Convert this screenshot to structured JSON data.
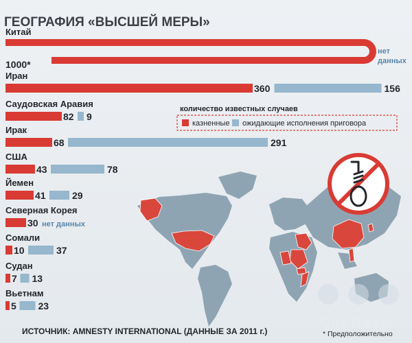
{
  "title": "ГЕОГРАФИЯ «ВЫСШЕЙ МЕРЫ»",
  "legend": {
    "heading": "количество известных случаев",
    "executed": "казненные",
    "awaiting": "ожидающие исполнения приговора"
  },
  "source": "ИСТОЧНИК: AMNESTY INTERNATIONAL (ДАННЫЕ ЗА 2011 г.)",
  "footnote": "* Предположительно",
  "no_data": "нет данных",
  "watermark": "CityTravel",
  "colors": {
    "executed": "#d93b34",
    "awaiting": "#96b7cd",
    "title": "#3c4047",
    "value": "#23262b",
    "nodata": "#5a86aa",
    "map_land": "#8fa4b3",
    "map_hi": "#d9473c",
    "bg": "#e6ebef"
  },
  "icons": {
    "noose": "noose-icon",
    "plane": "plane-icon",
    "building": "building-icon",
    "briefcase": "briefcase-icon"
  },
  "chart_data": {
    "type": "bar",
    "title": "ГЕОГРАФИЯ «ВЫСШЕЙ МЕРЫ»",
    "series_note": "количество известных случаев",
    "categories": [
      "Китай",
      "Иран",
      "Саудовская Аравия",
      "Ирак",
      "США",
      "Йемен",
      "Северная Корея",
      "Сомали",
      "Судан",
      "Вьетнам"
    ],
    "series": [
      {
        "name": "казненные",
        "values": [
          1000,
          360,
          82,
          68,
          43,
          41,
          30,
          10,
          7,
          5
        ],
        "labels": [
          "1000*",
          "360",
          "82",
          "68",
          "43",
          "41",
          "30",
          "10",
          "7",
          "5"
        ]
      },
      {
        "name": "ожидающие исполнения приговора",
        "values": [
          null,
          156,
          9,
          291,
          78,
          29,
          null,
          37,
          13,
          23
        ],
        "labels": [
          "нет данных",
          "156",
          "9",
          "291",
          "78",
          "29",
          "нет данных",
          "37",
          "13",
          "23"
        ]
      }
    ],
    "legend_position": "right"
  }
}
